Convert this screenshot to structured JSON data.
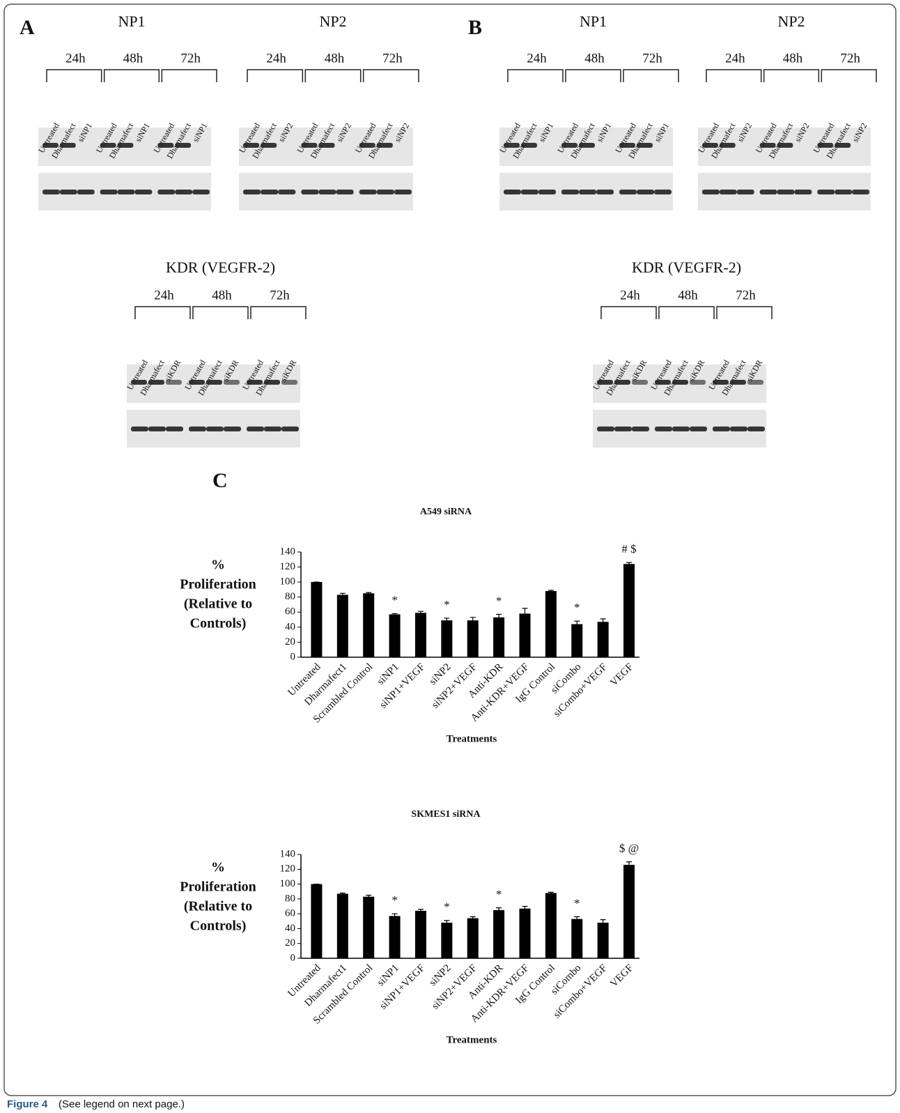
{
  "figure": {
    "panels": [
      {
        "label": "A",
        "blots": [
          {
            "title": "NP1",
            "times": [
              "24h",
              "48h",
              "72h"
            ],
            "lanes": [
              "Untreated",
              "Dharmafect",
              "siNP1"
            ]
          },
          {
            "title": "NP2",
            "times": [
              "24h",
              "48h",
              "72h"
            ],
            "lanes": [
              "Untreated",
              "Dharmafect",
              "siNP2"
            ]
          },
          {
            "title": "KDR (VEGFR-2)",
            "times": [
              "24h",
              "48h",
              "72h"
            ],
            "lanes": [
              "Untreated",
              "Dharmafect",
              "siKDR"
            ]
          }
        ]
      },
      {
        "label": "B",
        "blots": [
          {
            "title": "NP1",
            "times": [
              "24h",
              "48h",
              "72h"
            ],
            "lanes": [
              "Untreated",
              "Dharmafect",
              "siNP1"
            ]
          },
          {
            "title": "NP2",
            "times": [
              "24h",
              "48h",
              "72h"
            ],
            "lanes": [
              "Untreated",
              "Dharmafect",
              "siNP2"
            ]
          },
          {
            "title": "KDR (VEGFR-2)",
            "times": [
              "24h",
              "48h",
              "72h"
            ],
            "lanes": [
              "Untreated",
              "Dharmafect",
              "siKDR"
            ]
          }
        ]
      }
    ],
    "chart_panel_label": "C"
  },
  "chart_data": [
    {
      "type": "bar",
      "title": "A549 siRNA",
      "ylabel": [
        "%",
        "Proliferation",
        "(Relative to",
        "Controls)"
      ],
      "xlabel": "Treatments",
      "categories": [
        "Untreated",
        "Dharmafect1",
        "Scrambled Control",
        "siNP1",
        "siNP1+VEGF",
        "siNP2",
        "siNP2+VEGF",
        "Anti-KDR",
        "Anti-KDR+VEGF",
        "IgG Control",
        "siCombo",
        "siCombo+VEGF",
        "VEGF"
      ],
      "values": [
        100,
        83,
        85,
        57,
        59,
        49,
        49,
        53,
        58,
        88,
        44,
        47,
        124
      ],
      "errors": [
        0,
        2,
        1,
        1,
        2,
        3,
        4,
        4,
        7,
        1,
        4,
        4,
        2
      ],
      "annotations": [
        null,
        null,
        null,
        "*",
        null,
        "*",
        null,
        "*",
        null,
        null,
        "*",
        null,
        "# $"
      ],
      "color": "#000000",
      "ylim": [
        0,
        140
      ],
      "yticks": [
        0,
        20,
        40,
        60,
        80,
        100,
        120,
        140
      ]
    },
    {
      "type": "bar",
      "title": "SKMES1 siRNA",
      "ylabel": [
        "%",
        "Proliferation",
        "(Relative to",
        "Controls)"
      ],
      "xlabel": "Treatments",
      "categories": [
        "Untreated",
        "Dharmafect1",
        "Scrambled Control",
        "siNP1",
        "siNP1+VEGF",
        "siNP2",
        "siNP2+VEGF",
        "Anti-KDR",
        "Anti-KDR+VEGF",
        "IgG Control",
        "siCombo",
        "siCombo+VEGF",
        "VEGF"
      ],
      "values": [
        100,
        87,
        83,
        57,
        64,
        48,
        54,
        65,
        67,
        88,
        53,
        48,
        126
      ],
      "errors": [
        0,
        1,
        2,
        3,
        2,
        3,
        2,
        3,
        3,
        1,
        3,
        4,
        4
      ],
      "annotations": [
        null,
        null,
        null,
        "*",
        null,
        "*",
        null,
        "*",
        null,
        null,
        "*",
        null,
        "$ @"
      ],
      "color": "#000000",
      "ylim": [
        0,
        140
      ],
      "yticks": [
        0,
        20,
        40,
        60,
        80,
        100,
        120,
        140
      ]
    }
  ],
  "caption": {
    "label": "Figure 4",
    "text": "(See legend on next page.)"
  }
}
